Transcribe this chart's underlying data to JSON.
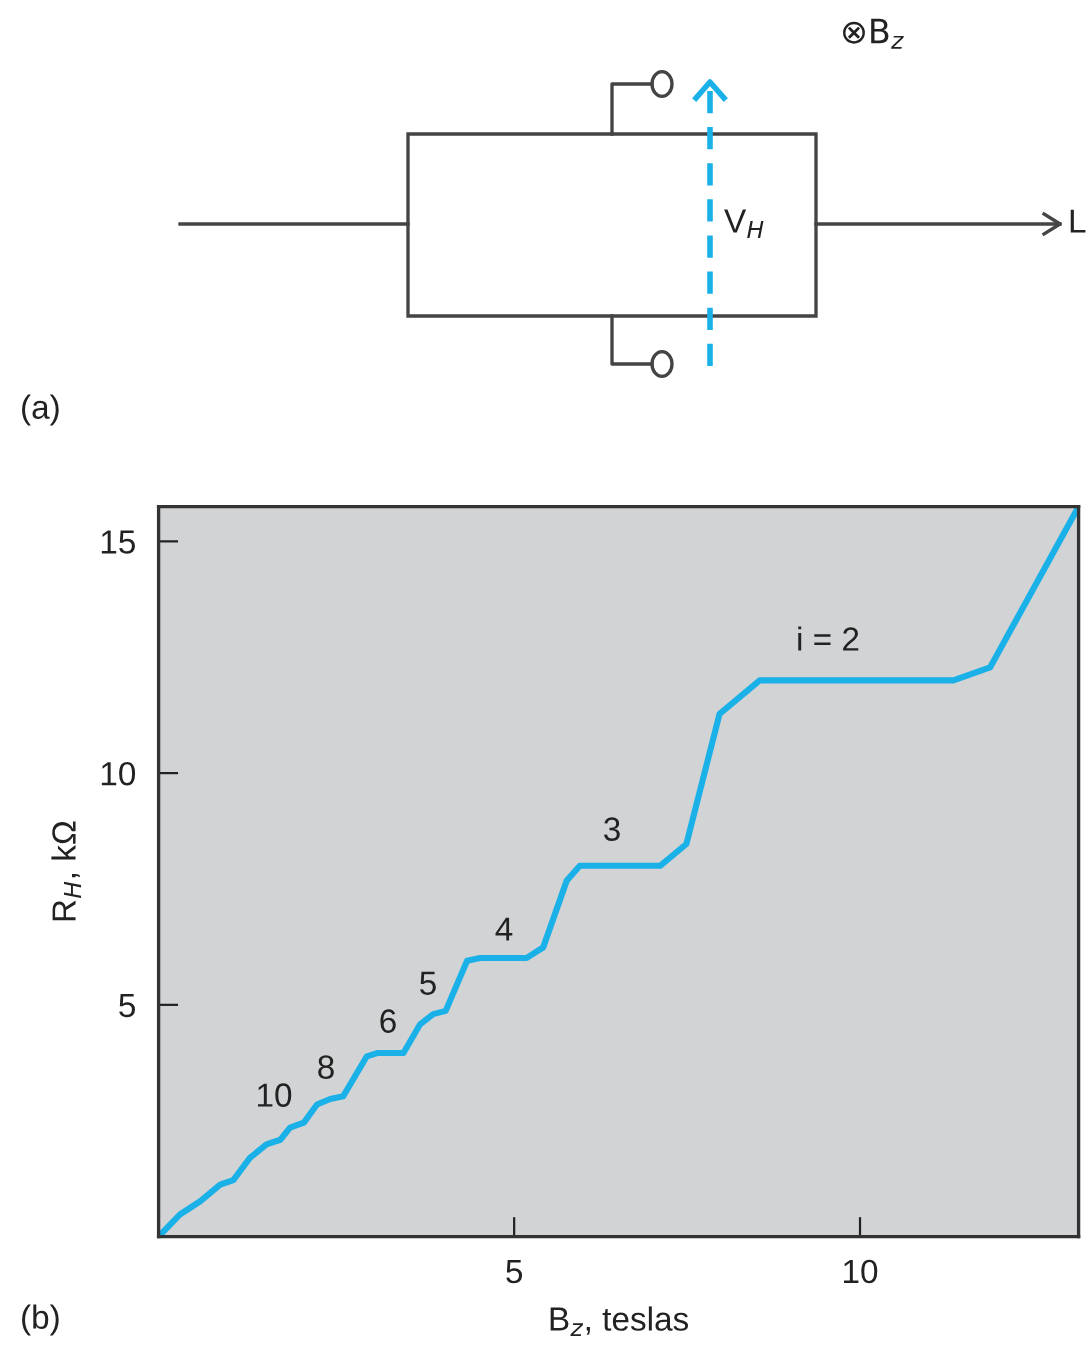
{
  "chart_data": {
    "type": "line",
    "xlabel": "B$_{z}$, teslas",
    "ylabel": "R$_{H}$, kΩ",
    "x": [
      -0.14,
      0.17,
      0.46,
      0.75,
      0.94,
      1.18,
      1.42,
      1.62,
      1.76,
      1.96,
      2.15,
      2.34,
      2.53,
      2.87,
      3.02,
      3.4,
      3.64,
      3.83,
      4.01,
      4.32,
      4.51,
      5.18,
      5.42,
      5.76,
      5.95,
      6.05,
      7.11,
      7.49,
      7.97,
      8.55,
      11.35,
      11.88,
      13.13
    ],
    "series": [
      {
        "color": "#1ab0e8",
        "values": [
          0,
          0.48,
          0.76,
          1.12,
          1.22,
          1.7,
          1.99,
          2.09,
          2.35,
          2.46,
          2.85,
          2.97,
          3.03,
          3.89,
          3.96,
          3.96,
          4.58,
          4.8,
          4.87,
          5.95,
          6.01,
          6.01,
          6.24,
          7.68,
          8.0,
          8.0,
          8.0,
          8.47,
          11.28,
          12.0,
          12.0,
          12.28,
          15.67
        ]
      }
    ],
    "xlim": [
      -0.14,
      13.16
    ],
    "ylim": [
      0,
      15.75
    ],
    "xticks": [
      5,
      10
    ],
    "yticks": [
      5,
      10,
      15
    ],
    "grid": false,
    "legend": false,
    "marker": "none",
    "line_style": "solid",
    "annotations": [
      "i = 2",
      "3",
      "4",
      "5",
      "6",
      "8",
      "10",
      "⊗B$_{z}$",
      "V$_{H}$",
      "L",
      "(a)",
      "(b)"
    ]
  }
}
